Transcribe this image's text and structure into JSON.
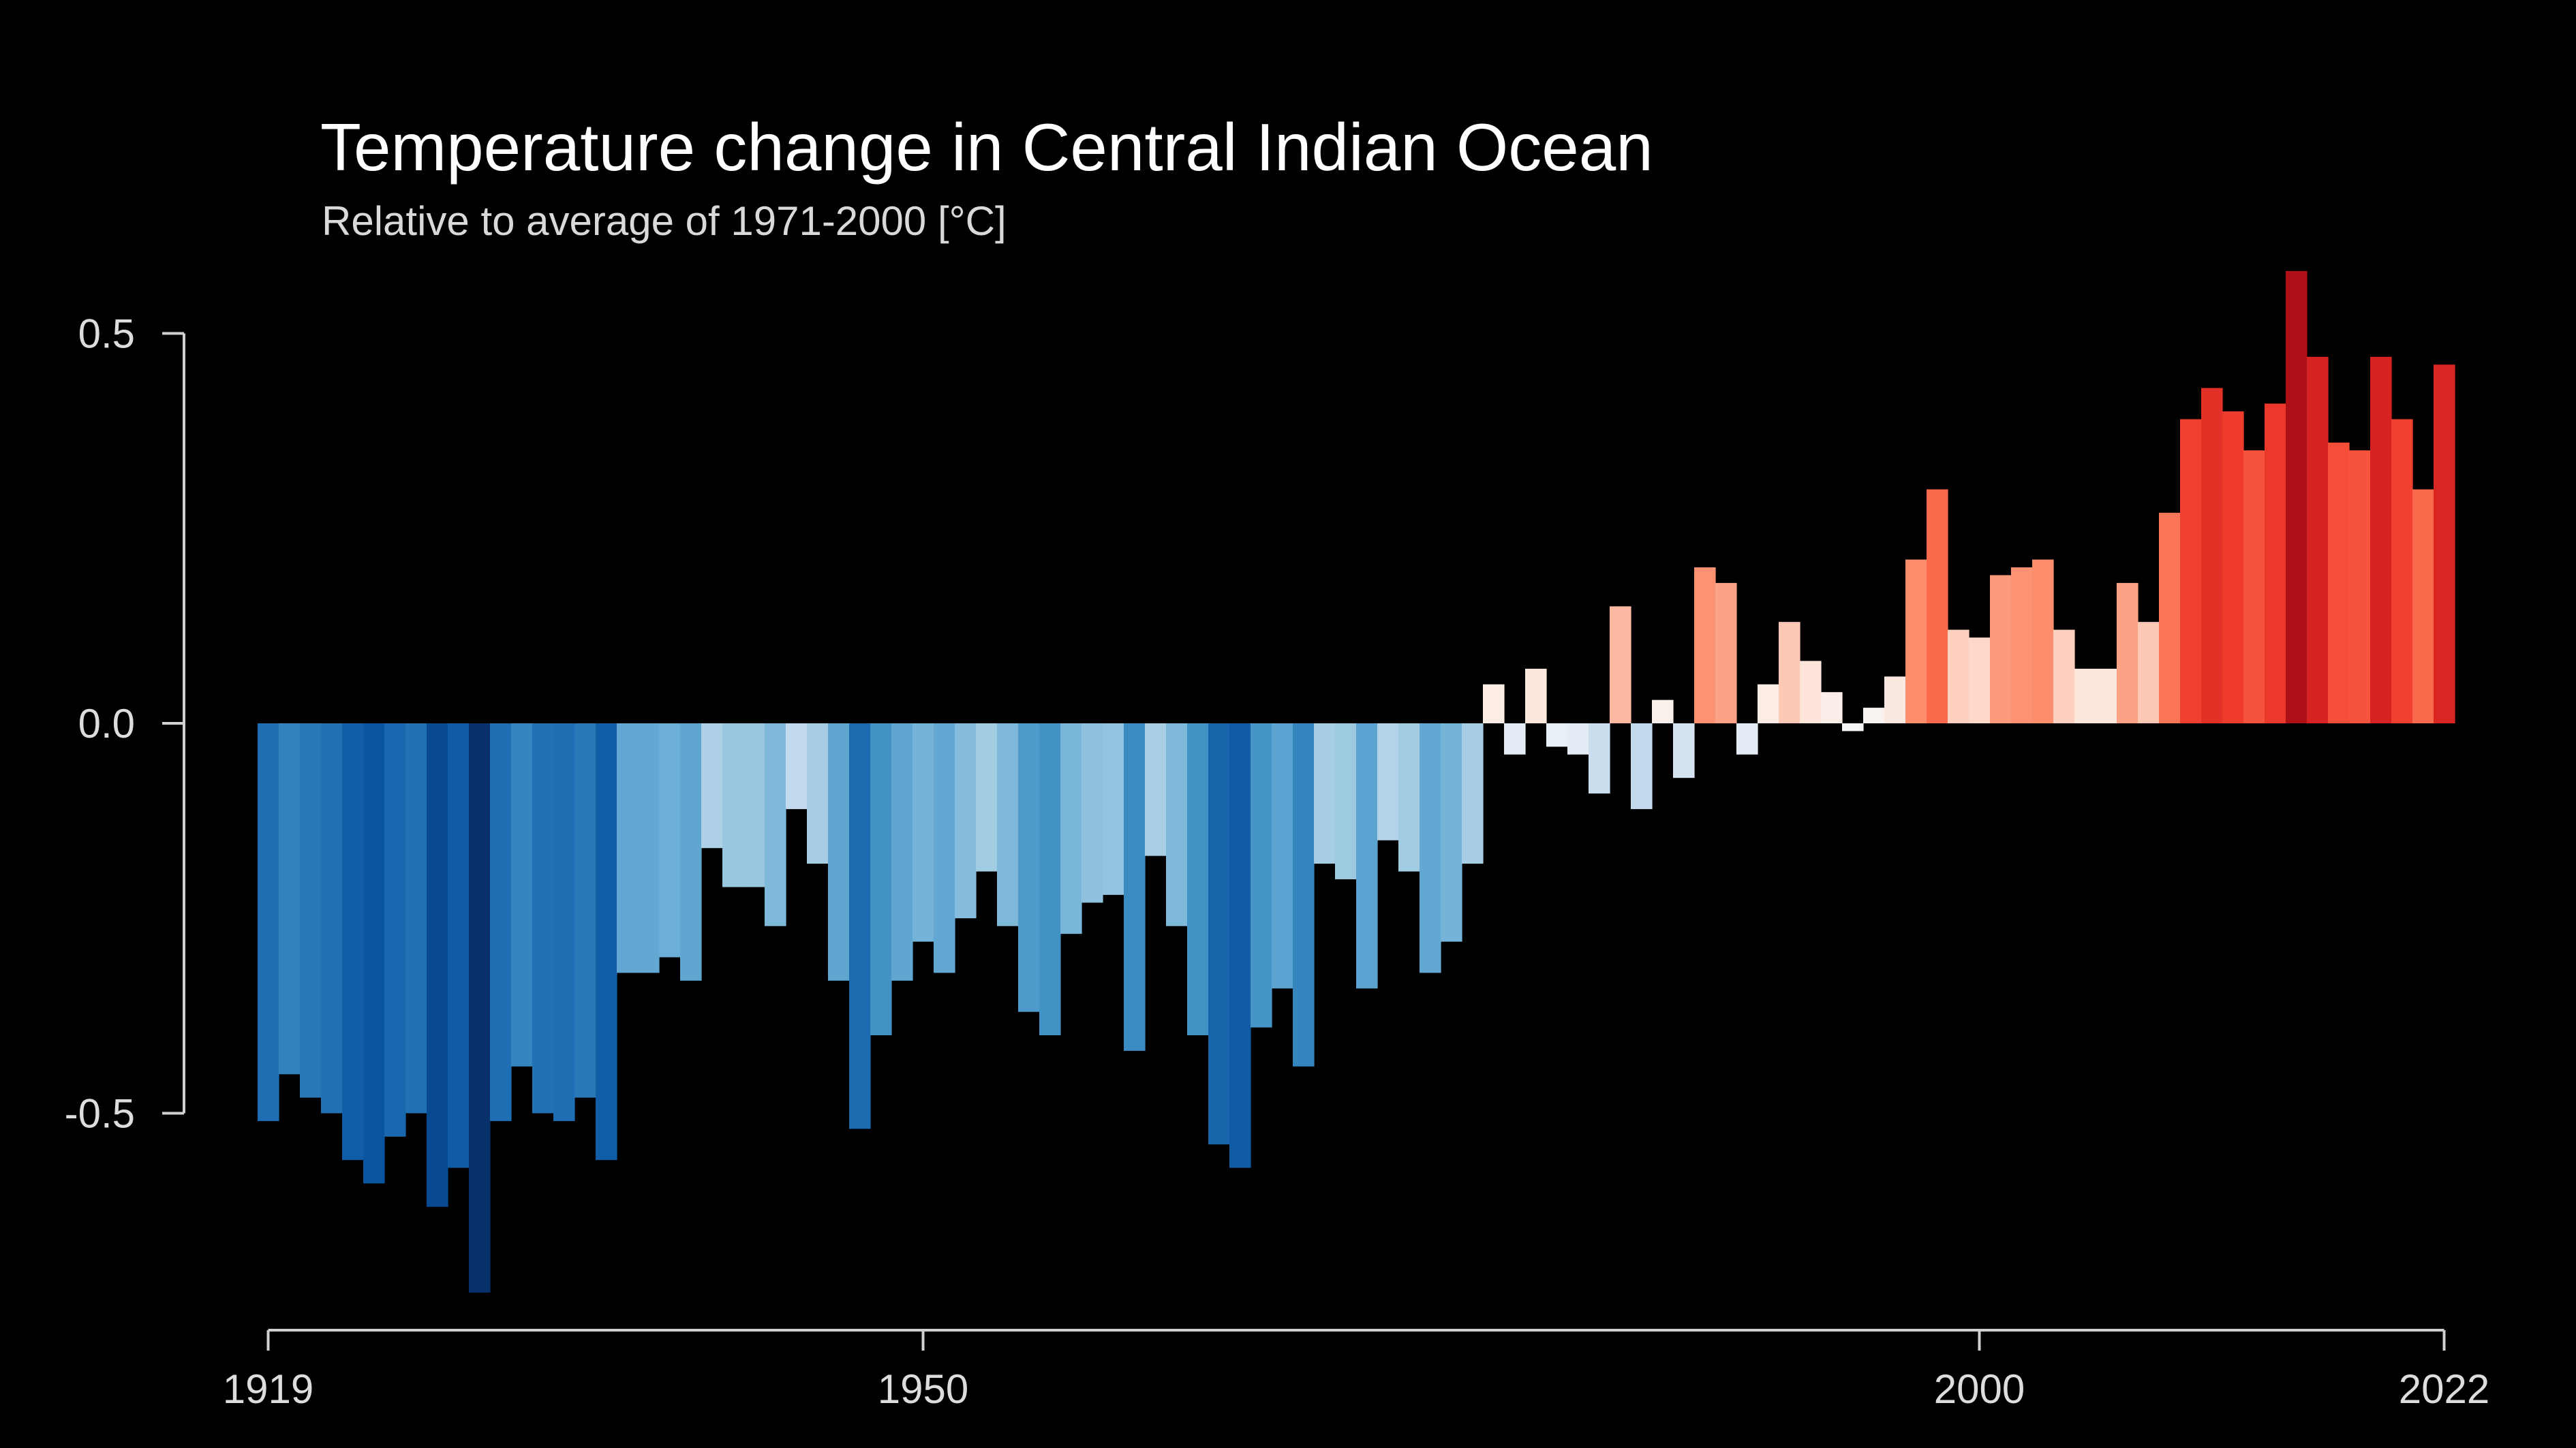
{
  "chart_data": {
    "type": "bar",
    "title": "Temperature change in Central Indian Ocean",
    "subtitle": "Relative to average of 1971-2000  [°C]",
    "xlabel": "",
    "ylabel": "",
    "ylim": [
      -0.8,
      0.62
    ],
    "yticks": [
      0.5,
      0.0,
      -0.5
    ],
    "ytick_labels": [
      "0.5",
      "0.0",
      "-0.5"
    ],
    "xticks": [
      1919,
      1950,
      2000,
      2022
    ],
    "xtick_labels": [
      "1919",
      "1950",
      "2000",
      "2022"
    ],
    "x_start": 1919,
    "x_end": 2022,
    "grid": false,
    "legend": "none",
    "colormap": "diverging blue-white-red (warming stripes)",
    "values": [
      -0.51,
      -0.45,
      -0.48,
      -0.5,
      -0.56,
      -0.59,
      -0.53,
      -0.5,
      -0.62,
      -0.57,
      -0.73,
      -0.51,
      -0.44,
      -0.5,
      -0.51,
      -0.48,
      -0.56,
      -0.32,
      -0.32,
      -0.3,
      -0.33,
      -0.16,
      -0.21,
      -0.21,
      -0.26,
      -0.11,
      -0.18,
      -0.33,
      -0.52,
      -0.4,
      -0.33,
      -0.28,
      -0.32,
      -0.25,
      -0.19,
      -0.26,
      -0.37,
      -0.4,
      -0.27,
      -0.23,
      -0.22,
      -0.42,
      -0.17,
      -0.26,
      -0.4,
      -0.54,
      -0.57,
      -0.39,
      -0.34,
      -0.44,
      -0.18,
      -0.2,
      -0.34,
      -0.15,
      -0.19,
      -0.32,
      -0.28,
      -0.18,
      0.05,
      -0.04,
      0.07,
      -0.03,
      -0.04,
      -0.09,
      0.15,
      -0.11,
      0.03,
      -0.07,
      0.2,
      0.18,
      -0.04,
      0.05,
      0.13,
      0.08,
      0.04,
      -0.01,
      0.02,
      0.06,
      0.21,
      0.3,
      0.12,
      0.11,
      0.19,
      0.2,
      0.21,
      0.12,
      0.07,
      0.07,
      0.18,
      0.13,
      0.27,
      0.39,
      0.43,
      0.4,
      0.35,
      0.41,
      0.58,
      0.47,
      0.36,
      0.35,
      0.47,
      0.39,
      0.3,
      0.46
    ]
  }
}
